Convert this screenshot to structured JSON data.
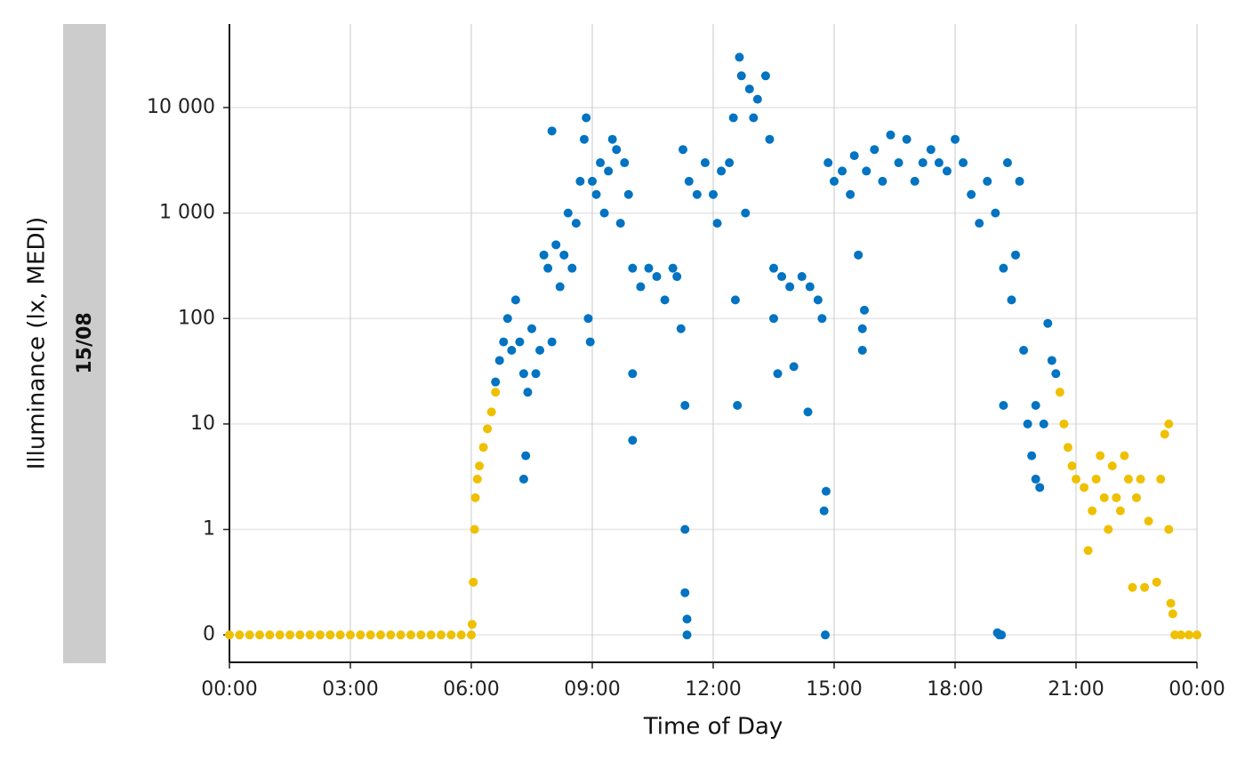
{
  "chart_data": {
    "type": "scatter",
    "xlabel": "Time of Day",
    "ylabel": "Illuminance (lx, MEDI)",
    "facet_label": "15/08",
    "yscale": "symlog",
    "grid": true,
    "xlim": [
      0,
      24
    ],
    "ylim": [
      -0.26,
      62000
    ],
    "xticks": [
      {
        "value": 0,
        "label": "00:00"
      },
      {
        "value": 3,
        "label": "03:00"
      },
      {
        "value": 6,
        "label": "06:00"
      },
      {
        "value": 9,
        "label": "09:00"
      },
      {
        "value": 12,
        "label": "12:00"
      },
      {
        "value": 15,
        "label": "15:00"
      },
      {
        "value": 18,
        "label": "18:00"
      },
      {
        "value": 21,
        "label": "21:00"
      },
      {
        "value": 24,
        "label": "00:00"
      }
    ],
    "yticks": [
      0,
      1,
      10,
      100,
      {
        "value": 1000,
        "label": "1 000"
      },
      {
        "value": 10000,
        "label": "10 000"
      }
    ],
    "series": [
      {
        "color": "#efc000",
        "x": [
          0,
          0.25,
          0.5,
          0.75,
          1,
          1.25,
          1.5,
          1.75,
          2,
          2.25,
          2.5,
          2.75,
          3,
          3.25,
          3.5,
          3.75,
          4,
          4.25,
          4.5,
          4.75,
          5,
          5.25,
          5.5,
          5.75,
          6,
          6.02,
          6.05,
          6.08,
          6.1,
          6.15,
          6.2,
          6.3,
          6.4,
          6.5,
          6.6,
          20.6,
          20.7,
          20.8,
          20.9,
          21,
          21.2,
          21.3,
          21.4,
          21.5,
          21.6,
          21.7,
          21.8,
          21.9,
          22,
          22.1,
          22.2,
          22.3,
          22.4,
          22.5,
          22.6,
          22.7,
          22.8,
          23,
          23.1,
          23.2,
          23.3,
          23.3,
          23.35,
          23.4,
          23.45,
          23.6,
          23.8,
          24
        ],
        "values": [
          0,
          0,
          0,
          0,
          0,
          0,
          0,
          0,
          0,
          0,
          0,
          0,
          0,
          0,
          0,
          0,
          0,
          0,
          0,
          0,
          0,
          0,
          0,
          0,
          0,
          0.1,
          0.5,
          1,
          2,
          3,
          4,
          6,
          9,
          13,
          20,
          20,
          10,
          6,
          4,
          3,
          2.5,
          0.8,
          1.5,
          3,
          5,
          2,
          1,
          4,
          2,
          1.5,
          5,
          3,
          0.45,
          2,
          3,
          0.45,
          1.2,
          0.5,
          3,
          8,
          10,
          1,
          0.3,
          0.2,
          0,
          0,
          0,
          0
        ]
      },
      {
        "color": "#0073c2",
        "x": [
          6.6,
          6.7,
          6.8,
          6.9,
          7.0,
          7.1,
          7.2,
          7.3,
          7.3,
          7.35,
          7.4,
          7.5,
          7.6,
          7.7,
          7.8,
          7.9,
          8.0,
          8.0,
          8.1,
          8.2,
          8.3,
          8.4,
          8.5,
          8.6,
          8.7,
          8.8,
          8.85,
          8.9,
          8.95,
          9.0,
          9.1,
          9.2,
          9.3,
          9.4,
          9.5,
          9.6,
          9.7,
          9.8,
          9.9,
          10.0,
          10.0,
          10.0,
          10.2,
          10.4,
          10.6,
          10.8,
          11.0,
          11.1,
          11.2,
          11.25,
          11.3,
          11.3,
          11.3,
          11.35,
          11.35,
          11.4,
          11.6,
          11.8,
          12.0,
          12.1,
          12.2,
          12.4,
          12.5,
          12.55,
          12.6,
          12.65,
          12.7,
          12.8,
          12.9,
          13.0,
          13.1,
          13.3,
          13.4,
          13.5,
          13.5,
          13.6,
          13.7,
          13.9,
          14.0,
          14.2,
          14.35,
          14.4,
          14.6,
          14.7,
          14.75,
          14.78,
          14.8,
          14.85,
          15.0,
          15.2,
          15.4,
          15.5,
          15.6,
          15.7,
          15.7,
          15.75,
          15.8,
          16.0,
          16.2,
          16.4,
          16.6,
          16.8,
          17.0,
          17.2,
          17.4,
          17.6,
          17.8,
          18.0,
          18.2,
          18.4,
          18.6,
          18.8,
          19.0,
          19.05,
          19.1,
          19.15,
          19.2,
          19.2,
          19.3,
          19.4,
          19.5,
          19.6,
          19.7,
          19.8,
          19.9,
          20.0,
          20.0,
          20.1,
          20.2,
          20.3,
          20.4,
          20.5
        ],
        "values": [
          25,
          40,
          60,
          100,
          50,
          150,
          60,
          30,
          3,
          5,
          20,
          80,
          30,
          50,
          400,
          300,
          6000,
          60,
          500,
          200,
          400,
          1000,
          300,
          800,
          2000,
          5000,
          8000,
          100,
          60,
          2000,
          1500,
          3000,
          1000,
          2500,
          5000,
          4000,
          800,
          3000,
          1500,
          300,
          7,
          30,
          200,
          300,
          250,
          150,
          300,
          250,
          80,
          4000,
          15,
          1,
          0.4,
          0.15,
          0,
          2000,
          1500,
          3000,
          1500,
          800,
          2500,
          3000,
          8000,
          150,
          15,
          30000,
          20000,
          1000,
          15000,
          8000,
          12000,
          20000,
          5000,
          300,
          100,
          30,
          250,
          200,
          35,
          250,
          13,
          200,
          150,
          100,
          1.5,
          0,
          2.3,
          3000,
          2000,
          2500,
          1500,
          3500,
          400,
          80,
          50,
          120,
          2500,
          4000,
          2000,
          5500,
          3000,
          5000,
          2000,
          3000,
          4000,
          3000,
          2500,
          5000,
          3000,
          1500,
          800,
          2000,
          1000,
          0.02,
          0,
          0,
          300,
          15,
          3000,
          150,
          400,
          2000,
          50,
          10,
          5,
          3,
          15,
          2.5,
          10,
          90,
          40,
          30
        ]
      }
    ]
  }
}
